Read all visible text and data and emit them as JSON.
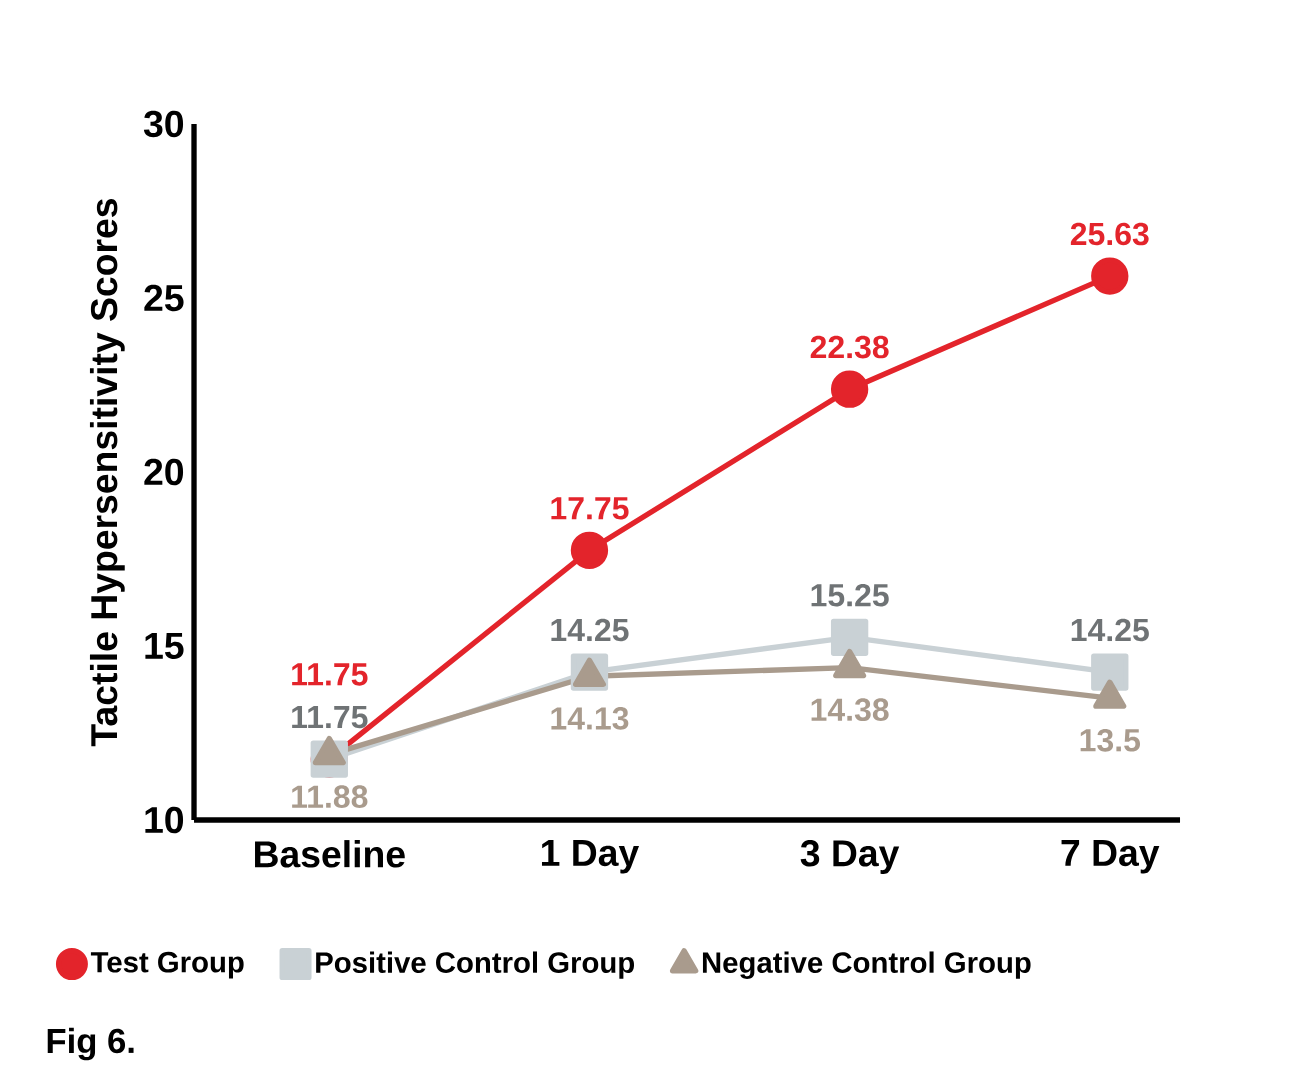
{
  "chart_data": {
    "type": "line",
    "ylabel": "Tactile Hypersensitivity Scores",
    "categories": [
      "Baseline",
      "1 Day",
      "3 Day",
      "7 Day"
    ],
    "series": [
      {
        "name": "Test Group",
        "color": "#e3242b",
        "marker": "circle",
        "values": [
          11.75,
          17.75,
          22.38,
          25.63
        ]
      },
      {
        "name": "Positive Control Group",
        "color": "#c9d1d5",
        "marker": "square",
        "values": [
          11.75,
          14.25,
          15.25,
          14.25
        ]
      },
      {
        "name": "Negative Control Group",
        "color": "#a99b8d",
        "marker": "triangle",
        "values": [
          11.88,
          14.13,
          14.38,
          13.5
        ]
      }
    ],
    "ylim": [
      10,
      30
    ],
    "yticks": [
      10,
      15,
      20,
      25,
      30
    ],
    "data_labels": true,
    "legend": "bottom",
    "line_style": "solid",
    "annotations": [
      "Fig 6."
    ]
  }
}
